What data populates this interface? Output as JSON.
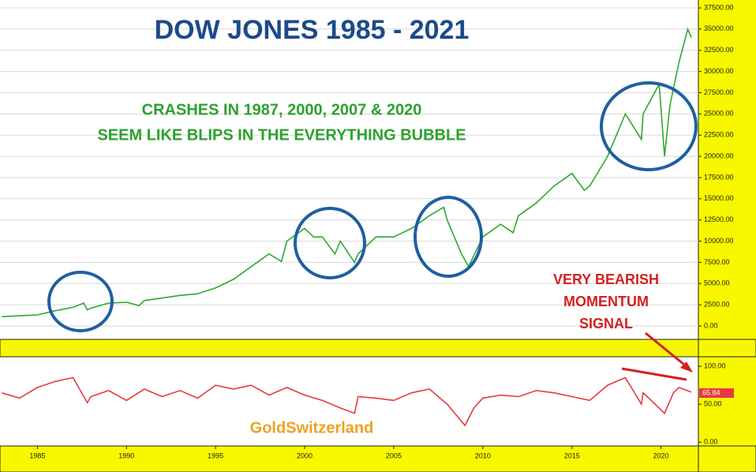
{
  "chart_data": [
    {
      "type": "line",
      "title": "DOW JONES 1985 - 2021",
      "annotations": [
        "CRASHES IN 1987, 2000, 2007 & 2020",
        "SEEM LIKE BLIPS IN THE EVERYTHING BUBBLE",
        "VERY BEARISH",
        "MOMENTUM",
        "SIGNAL"
      ],
      "x": [
        1983,
        1984,
        1985,
        1986,
        1987,
        1987.6,
        1987.8,
        1988,
        1989,
        1990,
        1990.7,
        1991,
        1992,
        1993,
        1994,
        1995,
        1996,
        1997,
        1998,
        1998.7,
        1999,
        2000,
        2000.5,
        2001,
        2001.7,
        2002,
        2002.8,
        2003,
        2004,
        2005,
        2006,
        2007,
        2007.8,
        2008,
        2008.8,
        2009.2,
        2010,
        2011,
        2011.7,
        2012,
        2013,
        2014,
        2015,
        2015.7,
        2016,
        2017,
        2018,
        2018.9,
        2019,
        2019.9,
        2020.2,
        2020.5,
        2021,
        2021.5,
        2021.7
      ],
      "series": [
        {
          "color": "#2fa82f",
          "values": [
            1100,
            1200,
            1300,
            1800,
            2200,
            2700,
            1900,
            2100,
            2700,
            2800,
            2400,
            3000,
            3300,
            3600,
            3800,
            4500,
            5500,
            7000,
            8500,
            7600,
            10000,
            11500,
            10500,
            10500,
            8500,
            10000,
            7500,
            8500,
            10500,
            10500,
            11500,
            13000,
            14000,
            12500,
            8500,
            7000,
            10500,
            12000,
            11000,
            13000,
            14500,
            16500,
            18000,
            16000,
            16500,
            20000,
            25000,
            22000,
            25000,
            28500,
            20000,
            26000,
            31000,
            35000,
            34000
          ]
        }
      ],
      "xlim": [
        1982.9,
        2022.1
      ],
      "ylim": [
        -1580,
        38430
      ],
      "yticks": [
        {
          "value": 0,
          "label": "0.00"
        },
        {
          "value": 2500,
          "label": "2500.00"
        },
        {
          "value": 5000,
          "label": "5000.00"
        },
        {
          "value": 7500,
          "label": "7500.00"
        },
        {
          "value": 10000,
          "label": "10000.00"
        },
        {
          "value": 12500,
          "label": "12500.00"
        },
        {
          "value": 15000,
          "label": "15000.00"
        },
        {
          "value": 17500,
          "label": "17500.00"
        },
        {
          "value": 20000,
          "label": "20000.00"
        },
        {
          "value": 22500,
          "label": "22500.00"
        },
        {
          "value": 25000,
          "label": "25000.00"
        },
        {
          "value": 27500,
          "label": "27500.00"
        },
        {
          "value": 30000,
          "label": "30000.00"
        },
        {
          "value": 32500,
          "label": "32500.00"
        },
        {
          "value": 35000,
          "label": "35000.00"
        },
        {
          "value": 37500,
          "label": "37500.00"
        }
      ],
      "grid": true
    },
    {
      "type": "line",
      "annotations": [
        "GoldSwitzerland"
      ],
      "last_value": 65.84,
      "x": [
        1983,
        1984,
        1985,
        1986,
        1987,
        1987.8,
        1988,
        1989,
        1990,
        1991,
        1992,
        1993,
        1994,
        1995,
        1996,
        1997,
        1998,
        1999,
        2000,
        2001,
        2002,
        2002.8,
        2003,
        2004,
        2005,
        2006,
        2007,
        2008,
        2009,
        2009.5,
        2010,
        2011,
        2012,
        2013,
        2014,
        2015,
        2016,
        2017,
        2018,
        2018.9,
        2019,
        2020.2,
        2020.7,
        2021,
        2021.7
      ],
      "series": [
        {
          "color": "#e8393f",
          "values": [
            65,
            58,
            72,
            80,
            85,
            52,
            60,
            68,
            55,
            70,
            60,
            68,
            58,
            75,
            70,
            75,
            62,
            72,
            62,
            55,
            45,
            38,
            60,
            58,
            55,
            65,
            70,
            50,
            22,
            45,
            58,
            62,
            60,
            68,
            65,
            60,
            55,
            75,
            85,
            50,
            65,
            38,
            65,
            72,
            66
          ]
        }
      ],
      "xlim": [
        1982.9,
        2022.1
      ],
      "ylim": [
        -5,
        112.5
      ],
      "yticks": [
        {
          "value": 0,
          "label": "0.00"
        },
        {
          "value": 50,
          "label": "50.00"
        },
        {
          "value": 100,
          "label": "100.00"
        }
      ],
      "xticks": [
        1985,
        1990,
        1995,
        2000,
        2005,
        2010,
        2015,
        2020
      ],
      "grid": false
    }
  ]
}
